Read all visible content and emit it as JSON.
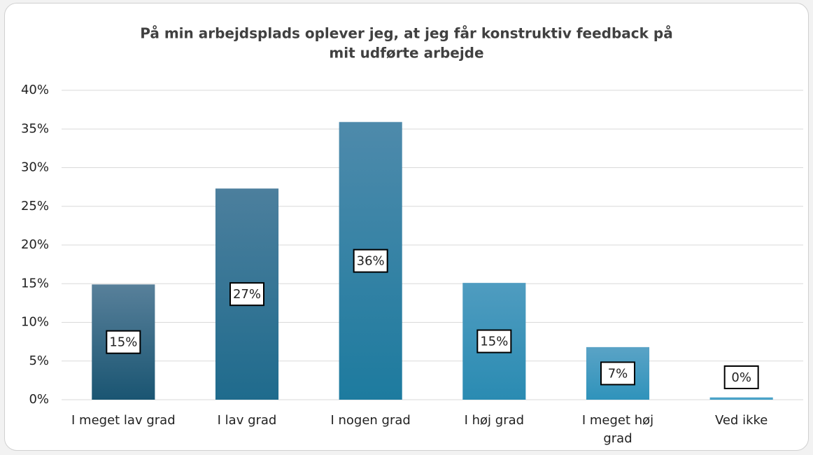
{
  "chart_data": {
    "type": "bar",
    "title": [
      "På min arbejdsplads oplever jeg, at jeg får konstruktiv feedback på",
      "mit udførte arbejde"
    ],
    "categories": [
      "I meget lav grad",
      "I lav grad",
      "I nogen grad",
      "I høj grad",
      "I meget høj\ngrad",
      "Ved ikke"
    ],
    "values": [
      14.9,
      27.3,
      35.9,
      15.1,
      6.8,
      0.3
    ],
    "value_labels": [
      "15%",
      "27%",
      "36%",
      "15%",
      "7%",
      "0%"
    ],
    "colors": [
      [
        "#58809a",
        "#1a5572"
      ],
      [
        "#4c7f9d",
        "#1f6b8d"
      ],
      [
        "#4e8aab",
        "#1d7b9f"
      ],
      [
        "#4f9cc0",
        "#2a8bb2"
      ],
      [
        "#5aa3c6",
        "#2f93bb"
      ],
      [
        "#5aa8cc",
        "#3a9cc4"
      ]
    ],
    "ylim": [
      0,
      40
    ],
    "yticks": [
      {
        "value": 0,
        "label": "0%"
      },
      {
        "value": 5,
        "label": "5%"
      },
      {
        "value": 10,
        "label": "10%"
      },
      {
        "value": 15,
        "label": "15%"
      },
      {
        "value": 20,
        "label": "20%"
      },
      {
        "value": 25,
        "label": "25%"
      },
      {
        "value": 30,
        "label": "30%"
      },
      {
        "value": 35,
        "label": "35%"
      },
      {
        "value": 40,
        "label": "40%"
      }
    ],
    "grid": true
  }
}
